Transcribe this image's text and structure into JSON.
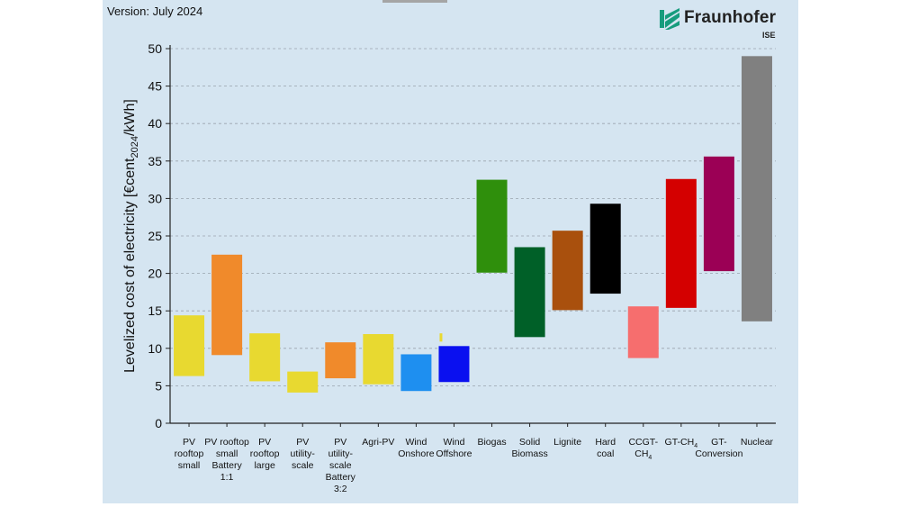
{
  "version_label": "Version: July 2024",
  "logo": {
    "name": "Fraunhofer",
    "sub": "ISE",
    "color": "#179c7d"
  },
  "chart_data": {
    "type": "bar",
    "subtype": "floating-range",
    "ylabel_parts": [
      "Levelized cost of electricity [€cent",
      "2024",
      "/kWh]"
    ],
    "ylim": [
      0,
      50
    ],
    "yticks": [
      "0",
      "5",
      "10",
      "15",
      "20",
      "25",
      "30",
      "35",
      "40",
      "45",
      "50"
    ],
    "grid": "horizontal dashed",
    "categories": [
      {
        "lines": [
          "PV",
          "rooftop",
          "small"
        ],
        "low": 6.3,
        "high": 14.4,
        "color": "#e8d930"
      },
      {
        "lines": [
          "PV rooftop",
          "small",
          "Battery",
          "1:1"
        ],
        "low": 9.1,
        "high": 22.5,
        "color": "#f08a2b"
      },
      {
        "lines": [
          "PV",
          "rooftop",
          "large"
        ],
        "low": 5.6,
        "high": 12.0,
        "color": "#e8d930"
      },
      {
        "lines": [
          "PV",
          "utility-",
          "scale"
        ],
        "low": 4.1,
        "high": 6.9,
        "color": "#e8d930"
      },
      {
        "lines": [
          "PV",
          "utility-",
          "scale",
          "Battery",
          "3:2"
        ],
        "low": 6.0,
        "high": 10.8,
        "color": "#f08a2b"
      },
      {
        "lines": [
          "Agri-PV"
        ],
        "low": 5.2,
        "high": 11.9,
        "color": "#e8d930"
      },
      {
        "lines": [
          "Wind",
          "Onshore"
        ],
        "low": 4.3,
        "high": 9.2,
        "color": "#1e8ff0"
      },
      {
        "lines": [
          "Wind",
          "Offshore"
        ],
        "low": 5.5,
        "high": 10.3,
        "color": "#0a10f0",
        "marker": {
          "low": 10.9,
          "high": 12.0,
          "color": "#e8d930"
        }
      },
      {
        "lines": [
          "Biogas"
        ],
        "low": 20.1,
        "high": 32.5,
        "color": "#2f8f0c"
      },
      {
        "lines": [
          "Solid",
          "Biomass"
        ],
        "low": 11.5,
        "high": 23.5,
        "color": "#006028"
      },
      {
        "lines": [
          "Lignite"
        ],
        "low": 15.1,
        "high": 25.7,
        "color": "#a9500d"
      },
      {
        "lines": [
          "Hard",
          "coal"
        ],
        "low": 17.3,
        "high": 29.3,
        "color": "#000000"
      },
      {
        "lines": [
          "CCGT-",
          "CH4"
        ],
        "low": 8.7,
        "high": 15.6,
        "color": "#f66e6e",
        "sub_line": 1
      },
      {
        "lines": [
          "GT-CH4"
        ],
        "low": 15.4,
        "high": 32.6,
        "color": "#d40000",
        "sub_line": 0
      },
      {
        "lines": [
          "GT-",
          "Conversion"
        ],
        "low": 20.3,
        "high": 35.6,
        "color": "#9b0055"
      },
      {
        "lines": [
          "Nuclear"
        ],
        "low": 13.6,
        "high": 49.0,
        "color": "#808080"
      }
    ]
  }
}
